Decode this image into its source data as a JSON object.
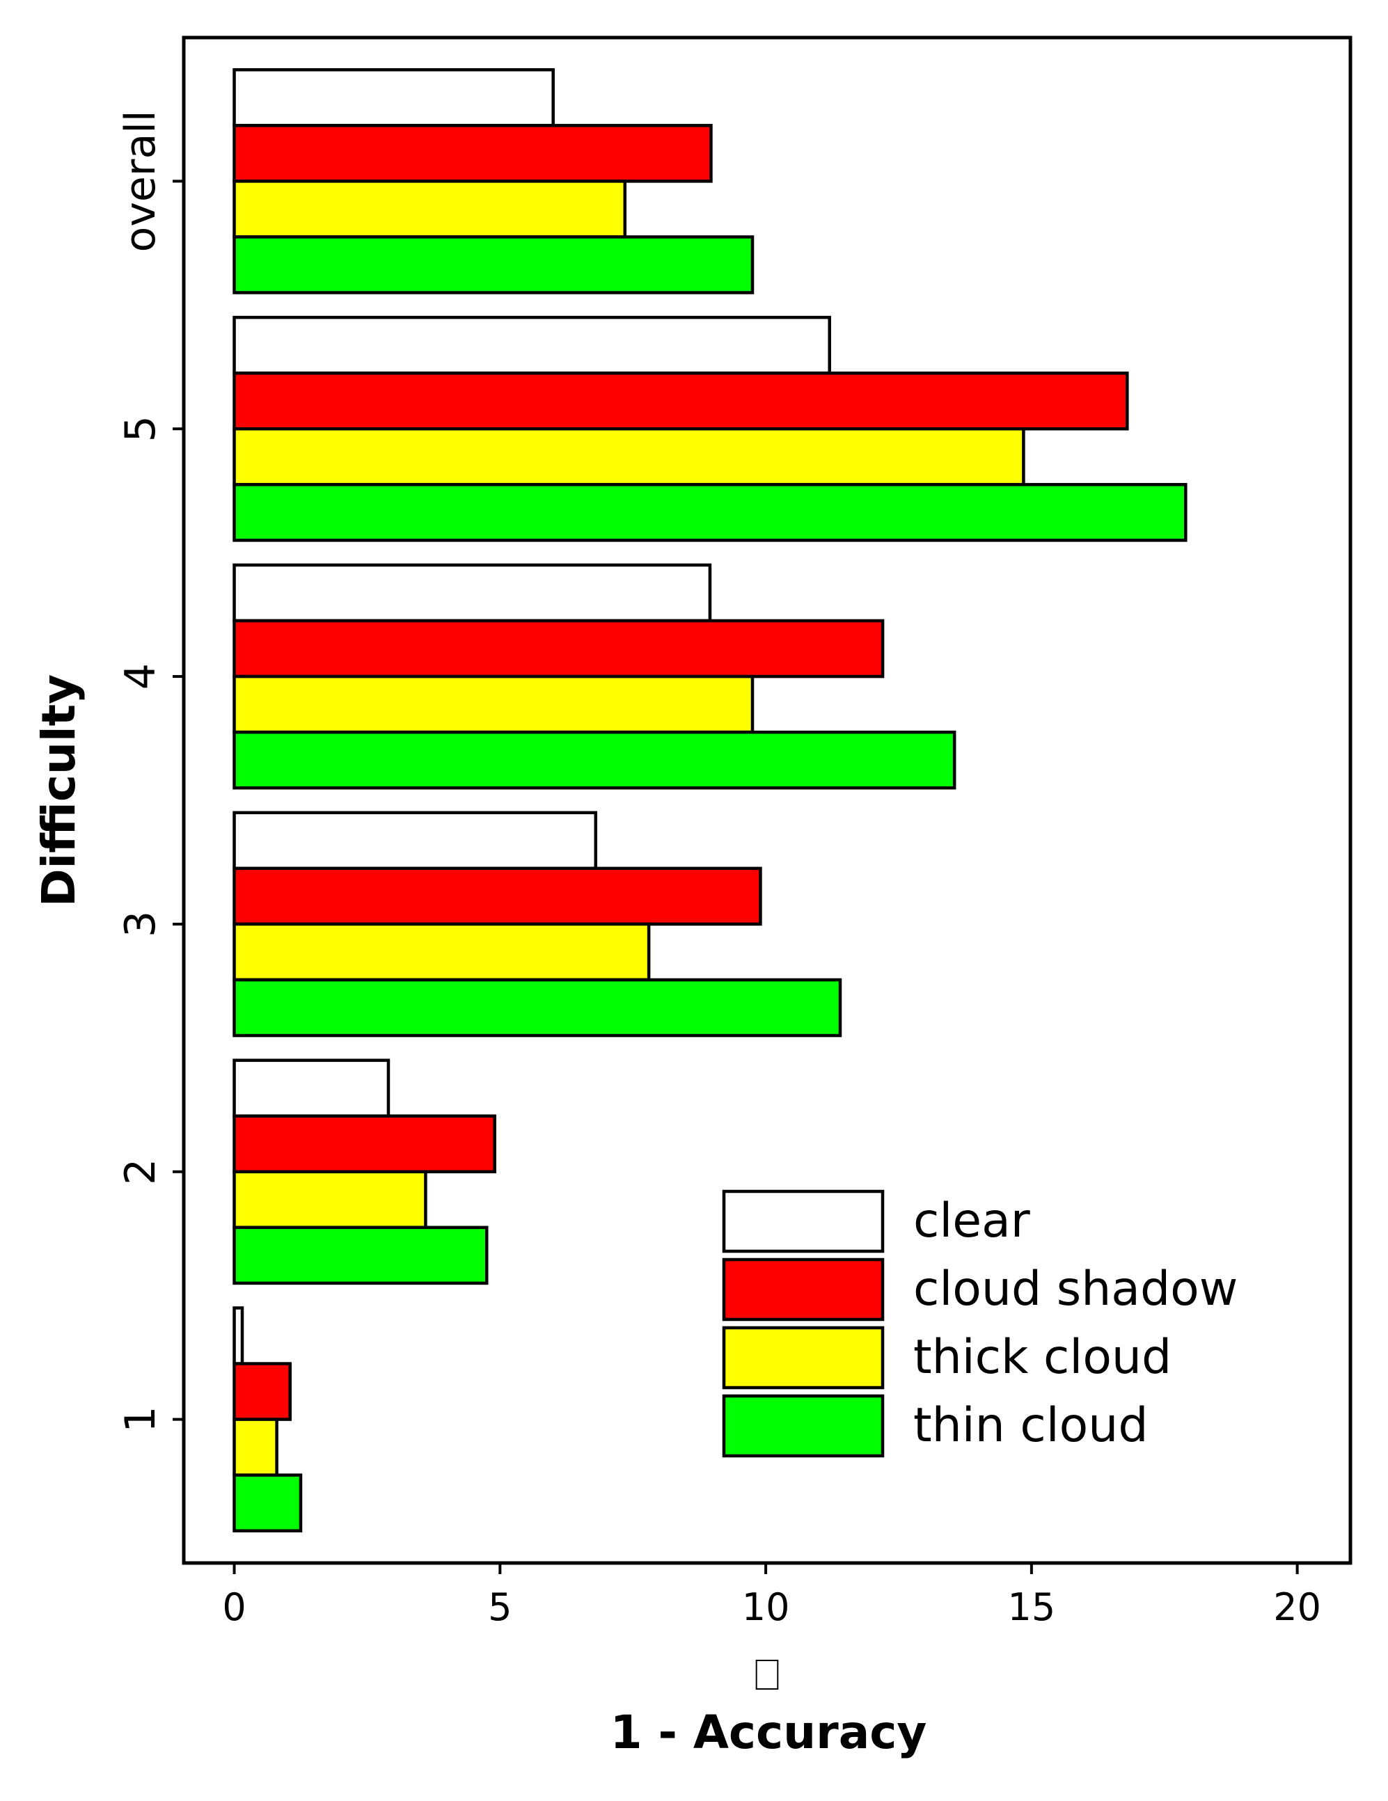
{
  "chart_data": {
    "type": "bar",
    "orientation": "horizontal",
    "categories": [
      "1",
      "2",
      "3",
      "4",
      "5",
      "overall"
    ],
    "series": [
      {
        "name": "clear",
        "color": "#ffffff",
        "values": [
          0.15,
          2.9,
          6.8,
          8.95,
          11.2,
          6.0
        ]
      },
      {
        "name": "cloud shadow",
        "color": "#ff0000",
        "values": [
          1.05,
          4.9,
          9.9,
          12.2,
          16.8,
          8.97
        ]
      },
      {
        "name": "thick cloud",
        "color": "#ffff00",
        "values": [
          0.8,
          3.6,
          7.8,
          9.75,
          14.85,
          7.35
        ]
      },
      {
        "name": "thin cloud",
        "color": "#00ff00",
        "values": [
          1.25,
          4.75,
          11.4,
          13.55,
          17.9,
          9.75
        ]
      }
    ],
    "xlabel": "1 - Accuracy",
    "xlabel_glyph": "⎕",
    "ylabel": "Difficulty",
    "xlim": [
      -0.95,
      21.0
    ],
    "xticks": [
      "0",
      "5",
      "10",
      "15",
      "20"
    ],
    "ylim": [
      -0.58,
      5.58
    ],
    "grid": false,
    "legend_position": "lower-right"
  }
}
